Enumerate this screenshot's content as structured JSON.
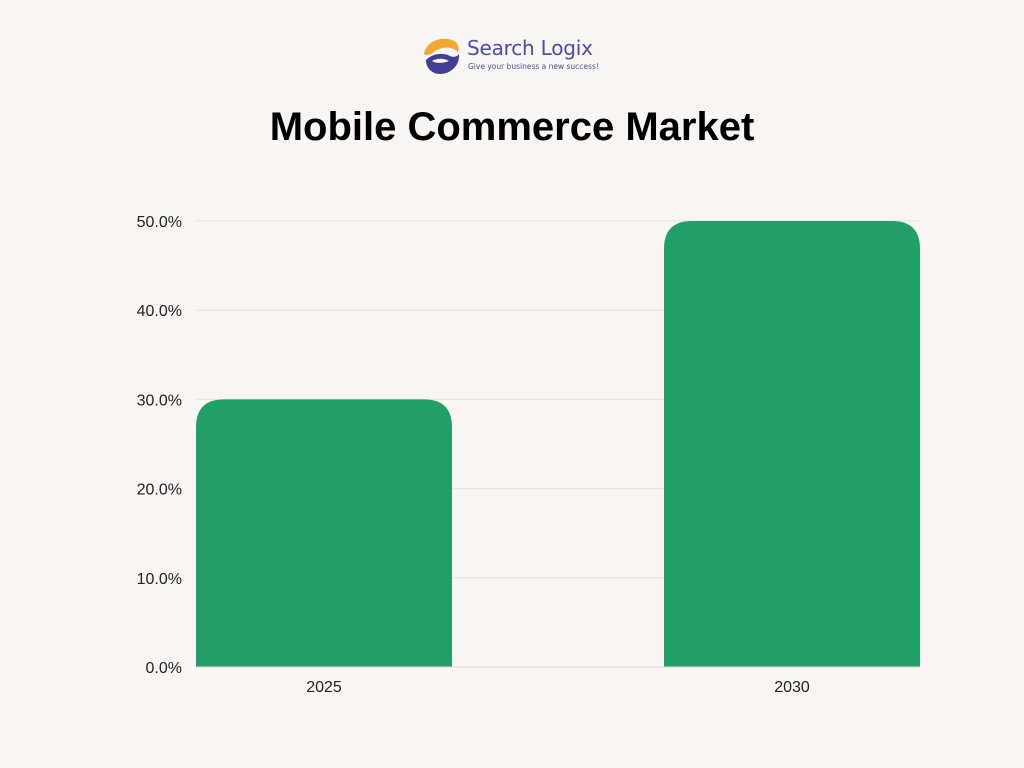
{
  "brand": {
    "name": "Search Logix",
    "tagline": "Give your business a new success!",
    "colors": {
      "orange": "#f0a833",
      "navy": "#3f3f93"
    },
    "icon": "swirl-logo-icon"
  },
  "chart_data": {
    "type": "bar",
    "title": "Mobile Commerce Market",
    "xlabel": "",
    "ylabel": "",
    "categories": [
      "2025",
      "2030"
    ],
    "values": [
      30,
      50
    ],
    "ylim": [
      0,
      50
    ],
    "yticks": [
      0,
      10,
      20,
      30,
      40,
      50
    ],
    "ytick_labels": [
      "0.0%",
      "10.0%",
      "20.0%",
      "30.0%",
      "40.0%",
      "50.0%"
    ],
    "bar_color": "#229e68",
    "grid": true,
    "legend": "none"
  }
}
